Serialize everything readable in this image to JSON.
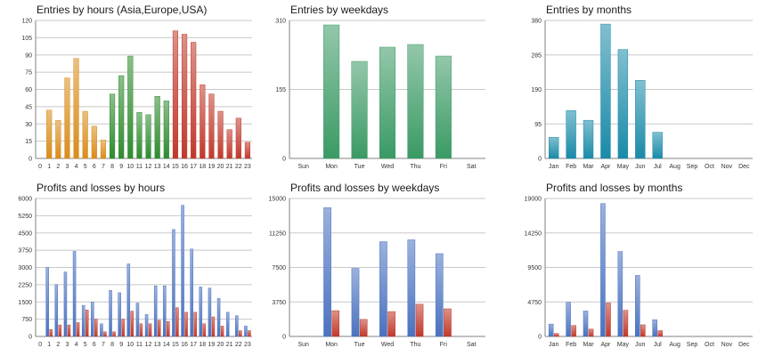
{
  "chart_data": [
    {
      "id": "entries-hours",
      "type": "bar",
      "title": "Entries by hours (Asia,Europe,USA)",
      "categories": [
        "0",
        "1",
        "2",
        "3",
        "4",
        "5",
        "6",
        "7",
        "8",
        "9",
        "10",
        "11",
        "12",
        "13",
        "14",
        "15",
        "16",
        "17",
        "18",
        "19",
        "20",
        "21",
        "22",
        "23"
      ],
      "values": [
        0,
        42,
        33,
        70,
        87,
        41,
        28,
        16,
        56,
        72,
        89,
        40,
        38,
        54,
        50,
        111,
        108,
        101,
        64,
        56,
        41,
        25,
        35,
        14
      ],
      "bar_colors": [
        "#d98c1a",
        "#d98c1a",
        "#d98c1a",
        "#d98c1a",
        "#d98c1a",
        "#d98c1a",
        "#d98c1a",
        "#d98c1a",
        "#2e8b2e",
        "#2e8b2e",
        "#2e8b2e",
        "#2e8b2e",
        "#2e8b2e",
        "#2e8b2e",
        "#2e8b2e",
        "#c0392b",
        "#c0392b",
        "#c0392b",
        "#c0392b",
        "#c0392b",
        "#c0392b",
        "#c0392b",
        "#c0392b",
        "#c0392b"
      ],
      "ylim": [
        0,
        120
      ],
      "yticks": [
        0,
        15,
        30,
        45,
        60,
        75,
        90,
        105,
        120
      ],
      "grid": true
    },
    {
      "id": "entries-weekdays",
      "type": "bar",
      "title": "Entries by weekdays",
      "categories": [
        "Sun",
        "Mon",
        "Tue",
        "Wed",
        "Thu",
        "Fri",
        "Sat"
      ],
      "values": [
        0,
        300,
        218,
        250,
        256,
        230,
        0
      ],
      "bar_colors": [
        "#3a9a64",
        "#3a9a64",
        "#3a9a64",
        "#3a9a64",
        "#3a9a64",
        "#3a9a64",
        "#3a9a64"
      ],
      "ylim": [
        0,
        310
      ],
      "yticks": [
        0,
        155,
        310
      ],
      "grid": true
    },
    {
      "id": "entries-months",
      "type": "bar",
      "title": "Entries by months",
      "categories": [
        "Jan",
        "Feb",
        "Mar",
        "Apr",
        "May",
        "Jun",
        "Jul",
        "Aug",
        "Sep",
        "Oct",
        "Nov",
        "Dec"
      ],
      "values": [
        58,
        132,
        105,
        370,
        300,
        215,
        72,
        0,
        0,
        0,
        0,
        0
      ],
      "bar_colors": [
        "#1a8aa8",
        "#1a8aa8",
        "#1a8aa8",
        "#1a8aa8",
        "#1a8aa8",
        "#1a8aa8",
        "#1a8aa8",
        "#1a8aa8",
        "#1a8aa8",
        "#1a8aa8",
        "#1a8aa8",
        "#1a8aa8"
      ],
      "ylim": [
        0,
        380
      ],
      "yticks": [
        0,
        95,
        190,
        285,
        380
      ],
      "grid": true
    },
    {
      "id": "pnl-hours",
      "type": "bar",
      "title": "Profits and losses by hours",
      "categories": [
        "0",
        "1",
        "2",
        "3",
        "4",
        "5",
        "6",
        "7",
        "8",
        "9",
        "10",
        "11",
        "12",
        "13",
        "14",
        "15",
        "16",
        "17",
        "18",
        "19",
        "20",
        "21",
        "22",
        "23"
      ],
      "series": [
        {
          "values": [
            0,
            3000,
            2250,
            2800,
            3700,
            1350,
            1500,
            550,
            2000,
            1900,
            3150,
            1450,
            950,
            2200,
            2200,
            4650,
            5700,
            3800,
            2150,
            2100,
            1650,
            1050,
            900,
            450
          ]
        },
        {
          "values": [
            0,
            300,
            500,
            500,
            600,
            1150,
            750,
            200,
            200,
            750,
            1100,
            550,
            550,
            700,
            650,
            1250,
            1050,
            1050,
            550,
            850,
            450,
            0,
            250,
            250
          ]
        }
      ],
      "series_colors": [
        "#4a72c0",
        "#c0392b"
      ],
      "ylim": [
        0,
        6000
      ],
      "yticks": [
        0,
        750,
        1500,
        2250,
        3000,
        3750,
        4500,
        5250,
        6000
      ],
      "grid": true
    },
    {
      "id": "pnl-weekdays",
      "type": "bar",
      "title": "Profits and losses by weekdays",
      "categories": [
        "Sun",
        "Mon",
        "Tue",
        "Wed",
        "Thu",
        "Fri",
        "Sat"
      ],
      "series": [
        {
          "values": [
            0,
            14000,
            7400,
            10300,
            10500,
            9000,
            0
          ]
        },
        {
          "values": [
            0,
            2800,
            1850,
            2700,
            3500,
            3000,
            0
          ]
        }
      ],
      "series_colors": [
        "#4a72c0",
        "#c0392b"
      ],
      "ylim": [
        0,
        15000
      ],
      "yticks": [
        0,
        3750,
        7500,
        11250,
        15000
      ],
      "grid": true
    },
    {
      "id": "pnl-months",
      "type": "bar",
      "title": "Profits and losses by months",
      "categories": [
        "Jan",
        "Feb",
        "Mar",
        "Apr",
        "May",
        "Jun",
        "Jul",
        "Aug",
        "Sep",
        "Oct",
        "Nov",
        "Dec"
      ],
      "series": [
        {
          "values": [
            1700,
            4700,
            3500,
            18300,
            11700,
            8400,
            2300,
            0,
            0,
            0,
            0,
            0
          ]
        },
        {
          "values": [
            400,
            1500,
            1000,
            4600,
            3600,
            1600,
            800,
            0,
            0,
            0,
            0,
            0
          ]
        }
      ],
      "series_colors": [
        "#4a72c0",
        "#c0392b"
      ],
      "ylim": [
        0,
        19000
      ],
      "yticks": [
        0,
        4750,
        9500,
        14250,
        19000
      ],
      "grid": true
    }
  ]
}
